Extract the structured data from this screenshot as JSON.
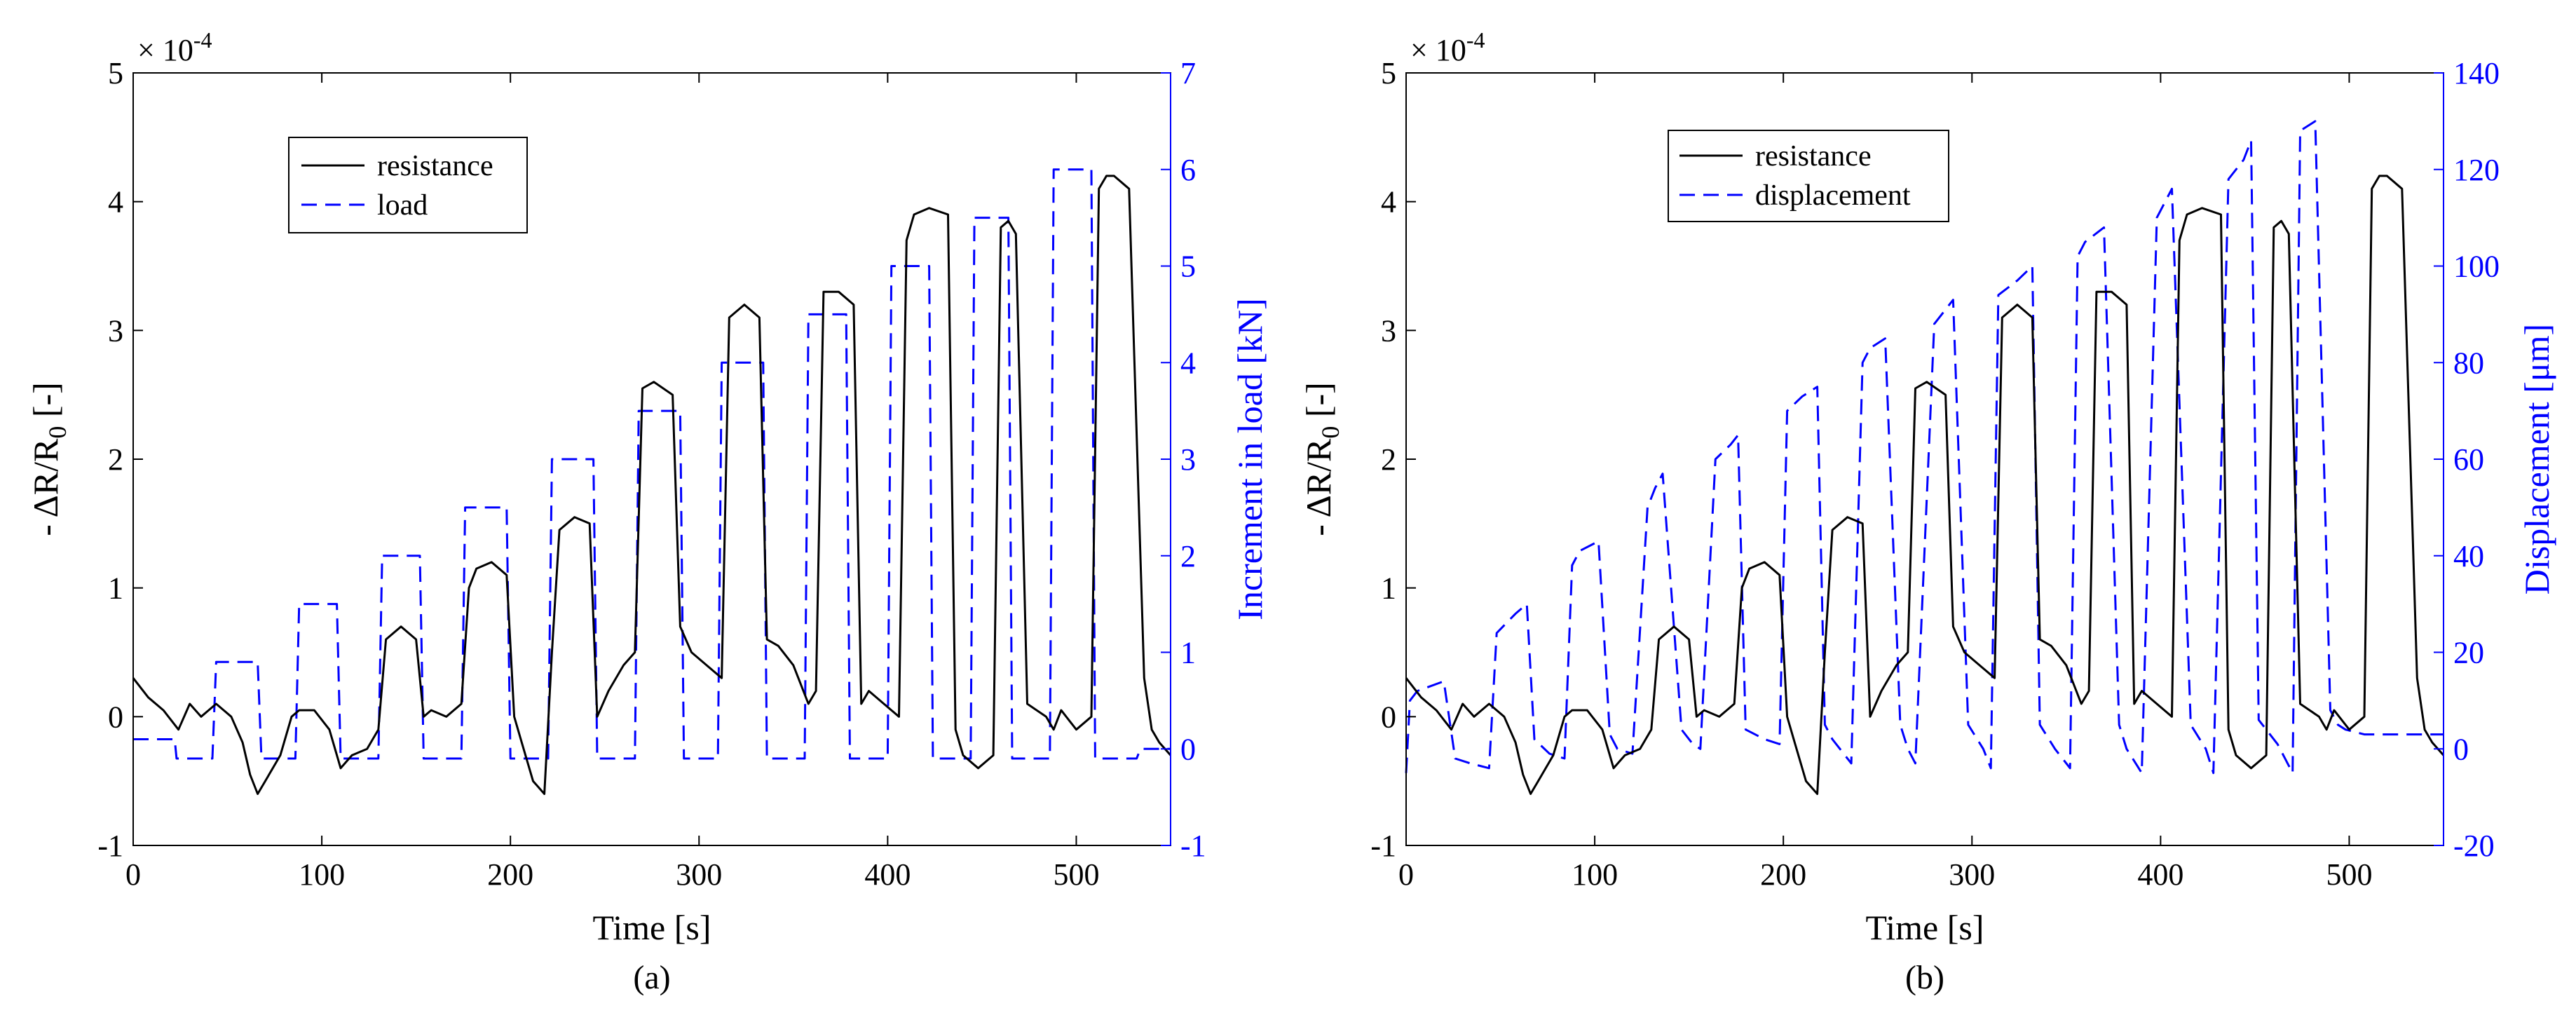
{
  "colors": {
    "resistance": "#000000",
    "secondary": "#0000ff",
    "axis": "#000000"
  },
  "chart_data": [
    {
      "type": "line",
      "caption": "(a)",
      "xlabel": "Time [s]",
      "ylabel_parts": [
        "- ΔR/R",
        "0",
        " [-]"
      ],
      "ylabel_right": "Increment in load [kN]",
      "exponent_label": [
        "× 10",
        "-4"
      ],
      "xlim": [
        0,
        550
      ],
      "ylim": [
        -1,
        5
      ],
      "ylim_right": [
        -1,
        7
      ],
      "xticks": [
        0,
        100,
        200,
        300,
        400,
        500
      ],
      "xtick_labels": [
        "0",
        "100",
        "200",
        "300",
        "400",
        "500"
      ],
      "yticks": [
        -1,
        0,
        1,
        2,
        3,
        4,
        5
      ],
      "ytick_labels": [
        "-1",
        "0",
        "1",
        "2",
        "3",
        "4",
        "5"
      ],
      "yticks_right": [
        -1,
        0,
        1,
        2,
        3,
        4,
        5,
        6,
        7
      ],
      "ytick_labels_right": [
        "-1",
        "0",
        "1",
        "2",
        "3",
        "4",
        "5",
        "6",
        "7"
      ],
      "legend": {
        "position": "top-left",
        "entries": [
          "resistance",
          "load"
        ]
      },
      "series": [
        {
          "name": "resistance",
          "axis": "left",
          "style": "solid",
          "x": [
            0,
            8,
            16,
            24,
            30,
            36,
            44,
            52,
            58,
            62,
            66,
            70,
            78,
            84,
            88,
            96,
            104,
            110,
            116,
            124,
            130,
            134,
            142,
            150,
            154,
            158,
            166,
            174,
            178,
            182,
            190,
            198,
            202,
            206,
            212,
            218,
            222,
            226,
            234,
            242,
            246,
            252,
            260,
            266,
            270,
            276,
            286,
            290,
            296,
            304,
            312,
            316,
            324,
            332,
            336,
            342,
            350,
            358,
            362,
            366,
            374,
            382,
            386,
            390,
            398,
            406,
            410,
            414,
            422,
            432,
            436,
            440,
            448,
            456,
            460,
            464,
            468,
            474,
            484,
            488,
            492,
            500,
            508,
            512,
            516,
            520,
            528,
            536,
            540,
            544,
            550
          ],
          "values": [
            0.3,
            0.15,
            0.05,
            -0.1,
            0.1,
            0.0,
            0.1,
            0.0,
            -0.2,
            -0.45,
            -0.6,
            -0.5,
            -0.3,
            0.0,
            0.05,
            0.05,
            -0.1,
            -0.4,
            -0.3,
            -0.25,
            -0.1,
            0.6,
            0.7,
            0.6,
            0.0,
            0.05,
            0.0,
            0.1,
            1.0,
            1.15,
            1.2,
            1.1,
            0.0,
            -0.2,
            -0.5,
            -0.6,
            0.5,
            1.45,
            1.55,
            1.5,
            0.0,
            0.2,
            0.4,
            0.5,
            2.55,
            2.6,
            2.5,
            0.7,
            0.5,
            0.4,
            0.3,
            3.1,
            3.2,
            3.1,
            0.6,
            0.55,
            0.4,
            0.1,
            0.2,
            3.3,
            3.3,
            3.2,
            0.1,
            0.2,
            0.1,
            0.0,
            3.7,
            3.9,
            3.95,
            3.9,
            -0.1,
            -0.3,
            -0.4,
            -0.3,
            3.8,
            3.85,
            3.75,
            0.1,
            0.0,
            -0.1,
            0.05,
            -0.1,
            0.0,
            4.1,
            4.2,
            4.2,
            4.1,
            0.3,
            -0.1,
            -0.2,
            -0.3
          ]
        },
        {
          "name": "load",
          "axis": "right",
          "style": "dashed",
          "x": [
            0,
            22,
            23,
            42,
            44,
            66,
            68,
            86,
            88,
            108,
            110,
            130,
            132,
            152,
            154,
            174,
            176,
            198,
            200,
            220,
            222,
            244,
            246,
            266,
            268,
            290,
            292,
            310,
            312,
            334,
            336,
            356,
            358,
            378,
            380,
            400,
            402,
            422,
            424,
            444,
            446,
            464,
            466,
            486,
            488,
            508,
            510,
            532,
            534,
            550
          ],
          "values": [
            0.1,
            0.1,
            -0.1,
            -0.1,
            0.9,
            0.9,
            -0.1,
            -0.1,
            1.5,
            1.5,
            -0.1,
            -0.1,
            2.0,
            2.0,
            -0.1,
            -0.1,
            2.5,
            2.5,
            -0.1,
            -0.1,
            3.0,
            3.0,
            -0.1,
            -0.1,
            3.5,
            3.5,
            -0.1,
            -0.1,
            4.0,
            4.0,
            -0.1,
            -0.1,
            4.5,
            4.5,
            -0.1,
            -0.1,
            5.0,
            5.0,
            -0.1,
            -0.1,
            5.5,
            5.5,
            -0.1,
            -0.1,
            6.0,
            6.0,
            -0.1,
            -0.1,
            0.0,
            0.0
          ]
        }
      ]
    },
    {
      "type": "line",
      "caption": "(b)",
      "xlabel": "Time [s]",
      "ylabel_parts": [
        "- ΔR/R",
        "0",
        " [-]"
      ],
      "ylabel_right": "Displacement [μm]",
      "exponent_label": [
        "× 10",
        "-4"
      ],
      "xlim": [
        0,
        550
      ],
      "ylim": [
        -1,
        5
      ],
      "ylim_right": [
        -20,
        140
      ],
      "xticks": [
        0,
        100,
        200,
        300,
        400,
        500
      ],
      "xtick_labels": [
        "0",
        "100",
        "200",
        "300",
        "400",
        "500"
      ],
      "yticks": [
        -1,
        0,
        1,
        2,
        3,
        4,
        5
      ],
      "ytick_labels": [
        "-1",
        "0",
        "1",
        "2",
        "3",
        "4",
        "5"
      ],
      "yticks_right": [
        -20,
        0,
        20,
        40,
        60,
        80,
        100,
        120,
        140
      ],
      "ytick_labels_right": [
        "-20",
        "0",
        "20",
        "40",
        "60",
        "80",
        "100",
        "120",
        "140"
      ],
      "legend": {
        "position": "top-left",
        "entries": [
          "resistance",
          "displacement"
        ]
      },
      "series": [
        {
          "name": "resistance",
          "axis": "left",
          "style": "solid",
          "x": [
            0,
            8,
            16,
            24,
            30,
            36,
            44,
            52,
            58,
            62,
            66,
            70,
            78,
            84,
            88,
            96,
            104,
            110,
            116,
            124,
            130,
            134,
            142,
            150,
            154,
            158,
            166,
            174,
            178,
            182,
            190,
            198,
            202,
            206,
            212,
            218,
            222,
            226,
            234,
            242,
            246,
            252,
            260,
            266,
            270,
            276,
            286,
            290,
            296,
            304,
            312,
            316,
            324,
            332,
            336,
            342,
            350,
            358,
            362,
            366,
            374,
            382,
            386,
            390,
            398,
            406,
            410,
            414,
            422,
            432,
            436,
            440,
            448,
            456,
            460,
            464,
            468,
            474,
            484,
            488,
            492,
            500,
            508,
            512,
            516,
            520,
            528,
            536,
            540,
            544,
            550
          ],
          "values": [
            0.3,
            0.15,
            0.05,
            -0.1,
            0.1,
            0.0,
            0.1,
            0.0,
            -0.2,
            -0.45,
            -0.6,
            -0.5,
            -0.3,
            0.0,
            0.05,
            0.05,
            -0.1,
            -0.4,
            -0.3,
            -0.25,
            -0.1,
            0.6,
            0.7,
            0.6,
            0.0,
            0.05,
            0.0,
            0.1,
            1.0,
            1.15,
            1.2,
            1.1,
            0.0,
            -0.2,
            -0.5,
            -0.6,
            0.5,
            1.45,
            1.55,
            1.5,
            0.0,
            0.2,
            0.4,
            0.5,
            2.55,
            2.6,
            2.5,
            0.7,
            0.5,
            0.4,
            0.3,
            3.1,
            3.2,
            3.1,
            0.6,
            0.55,
            0.4,
            0.1,
            0.2,
            3.3,
            3.3,
            3.2,
            0.1,
            0.2,
            0.1,
            0.0,
            3.7,
            3.9,
            3.95,
            3.9,
            -0.1,
            -0.3,
            -0.4,
            -0.3,
            3.8,
            3.85,
            3.75,
            0.1,
            0.0,
            -0.1,
            0.05,
            -0.1,
            0.0,
            4.1,
            4.2,
            4.2,
            4.1,
            0.3,
            -0.1,
            -0.2,
            -0.3
          ]
        },
        {
          "name": "displacement",
          "axis": "right",
          "style": "dashed",
          "x": [
            0,
            2,
            6,
            20,
            26,
            34,
            44,
            48,
            58,
            64,
            68,
            76,
            84,
            88,
            92,
            102,
            108,
            112,
            120,
            128,
            132,
            136,
            146,
            152,
            156,
            164,
            172,
            176,
            180,
            190,
            198,
            202,
            210,
            218,
            222,
            226,
            236,
            242,
            246,
            254,
            262,
            266,
            270,
            280,
            286,
            290,
            298,
            306,
            310,
            314,
            324,
            332,
            336,
            344,
            352,
            356,
            360,
            370,
            378,
            382,
            390,
            398,
            402,
            406,
            416,
            424,
            428,
            436,
            444,
            448,
            452,
            462,
            470,
            474,
            482,
            490,
            494,
            498,
            508,
            516,
            520,
            528,
            536,
            540,
            544,
            550
          ],
          "values": [
            -5,
            10,
            12,
            14,
            -2,
            -3,
            -4,
            24,
            28,
            30,
            2,
            -1,
            -2,
            38,
            41,
            43,
            3,
            0,
            -1,
            50,
            54,
            57,
            4,
            1,
            0,
            60,
            63,
            65,
            4,
            2,
            1,
            70,
            73,
            75,
            5,
            2,
            -3,
            80,
            83,
            85,
            5,
            0,
            -3,
            88,
            91,
            93,
            5,
            0,
            -4,
            94,
            97,
            100,
            5,
            0,
            -4,
            102,
            105,
            108,
            5,
            0,
            -5,
            110,
            113,
            116,
            5,
            0,
            -5,
            118,
            122,
            126,
            6,
            1,
            -5,
            128,
            130,
            8,
            5,
            4,
            3,
            3,
            3,
            3,
            3,
            3,
            3,
            3
          ]
        }
      ]
    }
  ]
}
